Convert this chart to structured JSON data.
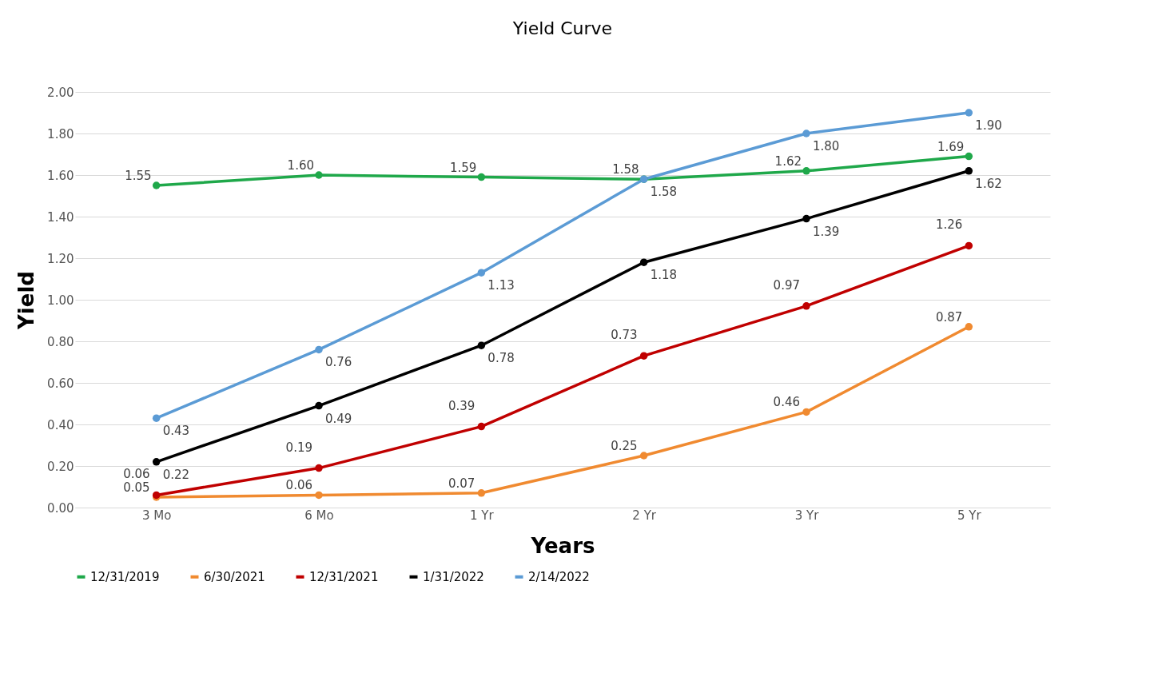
{
  "chart_data": {
    "type": "line",
    "title": "Yield Curve",
    "xlabel": "Years",
    "ylabel": "Yield",
    "categories": [
      "3 Mo",
      "6 Mo",
      "1 Yr",
      "2 Yr",
      "3 Yr",
      "5 Yr"
    ],
    "series": [
      {
        "name": "12/31/2019",
        "color": "#1fa84a",
        "values": [
          1.55,
          1.6,
          1.59,
          1.58,
          1.62,
          1.69
        ],
        "value_labels": [
          "1.55",
          "1.60",
          "1.59",
          "1.58",
          "1.62",
          "1.69"
        ]
      },
      {
        "name": "6/30/2021",
        "color": "#f08a30",
        "values": [
          0.05,
          0.06,
          0.07,
          0.25,
          0.46,
          0.87
        ],
        "value_labels": [
          "0.05",
          "0.06",
          "0.07",
          "0.25",
          "0.46",
          "0.87"
        ]
      },
      {
        "name": "12/31/2021",
        "color": "#c00000",
        "values": [
          0.06,
          0.19,
          0.39,
          0.73,
          0.97,
          1.26
        ],
        "value_labels": [
          "0.06",
          "0.19",
          "0.39",
          "0.73",
          "0.97",
          "1.26"
        ]
      },
      {
        "name": "1/31/2022",
        "color": "#000000",
        "values": [
          0.22,
          0.49,
          0.78,
          1.18,
          1.39,
          1.62
        ],
        "value_labels": [
          "0.22",
          "0.49",
          "0.78",
          "1.18",
          "1.39",
          "1.62"
        ]
      },
      {
        "name": "2/14/2022",
        "color": "#5b9bd5",
        "values": [
          0.43,
          0.76,
          1.13,
          1.58,
          1.8,
          1.9
        ],
        "value_labels": [
          "0.43",
          "0.76",
          "1.13",
          "1.58",
          "1.80",
          "1.90"
        ]
      }
    ],
    "ylim": [
      0,
      2
    ],
    "yticks": [
      {
        "value": 0,
        "label": "0.00"
      },
      {
        "value": 0.2,
        "label": "0.20"
      },
      {
        "value": 0.4,
        "label": "0.40"
      },
      {
        "value": 0.6,
        "label": "0.60"
      },
      {
        "value": 0.8,
        "label": "0.80"
      },
      {
        "value": 1,
        "label": "1.00"
      },
      {
        "value": 1.2,
        "label": "1.20"
      },
      {
        "value": 1.4,
        "label": "1.40"
      },
      {
        "value": 1.6,
        "label": "1.60"
      },
      {
        "value": 1.8,
        "label": "1.80"
      },
      {
        "value": 2,
        "label": "2.00"
      }
    ],
    "grid": "y",
    "legend": "bottom",
    "marker": "circle",
    "line_style": "solid"
  }
}
